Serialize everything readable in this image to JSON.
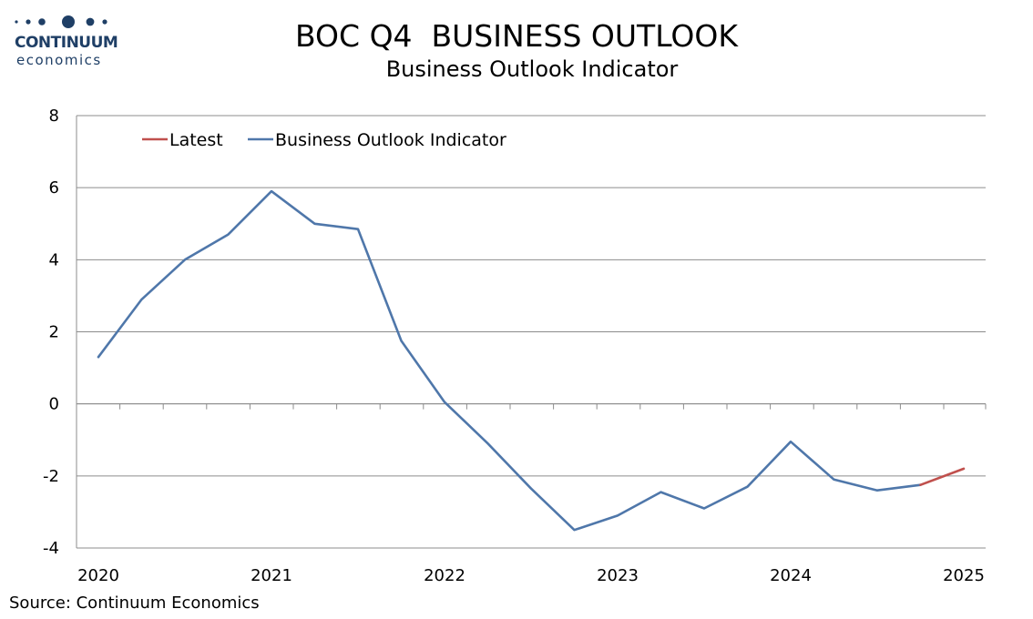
{
  "brand": {
    "name": "CONTINUUM",
    "sub": "economics"
  },
  "title": "BOC Q4  BUSINESS OUTLOOK",
  "subtitle": "Business Outlook Indicator",
  "source": "Source: Continuum Economics",
  "colors": {
    "series_main": "#4f77aa",
    "series_latest": "#c0504d",
    "brand": "#1f3f66",
    "grid": "#8c8c8c"
  },
  "chart_data": {
    "type": "line",
    "ylim": [
      -4,
      8
    ],
    "yticks": [
      8,
      6,
      4,
      2,
      0,
      -2,
      -4
    ],
    "ytick_labels": [
      "8",
      "6",
      "4",
      "2",
      "0",
      "-2",
      "-4"
    ],
    "xticks": [
      2020,
      2021,
      2022,
      2023,
      2024,
      2025
    ],
    "xtick_labels": [
      "2020",
      "2021",
      "2022",
      "2023",
      "2024",
      "2025"
    ],
    "xlim": [
      2020,
      2025
    ],
    "grid": true,
    "legend_position": "top-left",
    "legend": [
      "Latest",
      "Business Outlook Indicator"
    ],
    "series": [
      {
        "name": "Business Outlook Indicator",
        "color": "#4f77aa",
        "x": [
          2020.0,
          2020.25,
          2020.5,
          2020.75,
          2021.0,
          2021.25,
          2021.5,
          2021.75,
          2022.0,
          2022.25,
          2022.5,
          2022.75,
          2023.0,
          2023.25,
          2023.5,
          2023.75,
          2024.0,
          2024.25,
          2024.5,
          2024.75
        ],
        "y": [
          1.3,
          2.9,
          4.0,
          4.7,
          5.9,
          5.0,
          4.85,
          1.75,
          0.05,
          -1.1,
          -2.35,
          -3.5,
          -3.1,
          -2.45,
          -2.9,
          -2.3,
          -1.05,
          -2.1,
          -2.4,
          -2.25
        ]
      },
      {
        "name": "Latest",
        "color": "#c0504d",
        "x": [
          2024.75,
          2025.0
        ],
        "y": [
          -2.25,
          -1.8
        ]
      }
    ]
  }
}
